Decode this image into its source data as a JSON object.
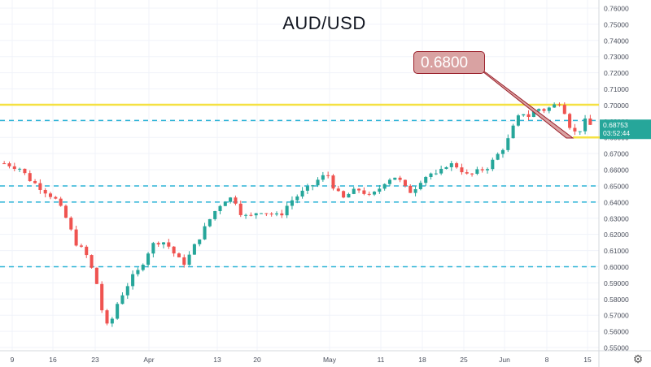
{
  "chart_data": {
    "type": "candlestick",
    "title": "AUD/USD",
    "annotation": "0.6800",
    "ylim": [
      0.548,
      0.762
    ],
    "y_ticks": [
      "0.76000",
      "0.75000",
      "0.74000",
      "0.73000",
      "0.72000",
      "0.71000",
      "0.70000",
      "0.69000",
      "0.68000",
      "0.67000",
      "0.66000",
      "0.65000",
      "0.64000",
      "0.63000",
      "0.62000",
      "0.61000",
      "0.60000",
      "0.59000",
      "0.58000",
      "0.57000",
      "0.56000",
      "0.55000"
    ],
    "x_ticks": [
      "9",
      "16",
      "23",
      "Apr",
      "13",
      "20",
      "May",
      "11",
      "18",
      "25",
      "Jun",
      "8",
      "15"
    ],
    "last_price": "0.68753",
    "countdown": "03:52:44",
    "horizontal_lines": [
      {
        "price": 0.7002,
        "style": "solid",
        "color": "#f5e142"
      },
      {
        "price": 0.6905,
        "style": "dashed",
        "color": "#2bb3d6"
      },
      {
        "price": 0.65,
        "style": "dashed",
        "color": "#2bb3d6"
      },
      {
        "price": 0.64,
        "style": "dashed",
        "color": "#2bb3d6"
      },
      {
        "price": 0.6,
        "style": "dashed",
        "color": "#2bb3d6"
      }
    ],
    "support_line": {
      "price": 0.68,
      "color": "#f5e142"
    },
    "series": {
      "name": "AUD/USD",
      "up_color": "#26a69a",
      "down_color": "#ef5350",
      "close_path": [
        [
          0,
          0.664
        ],
        [
          12,
          0.661
        ],
        [
          20,
          0.654
        ],
        [
          30,
          0.648
        ],
        [
          40,
          0.642
        ],
        [
          48,
          0.631
        ],
        [
          56,
          0.615
        ],
        [
          64,
          0.608
        ],
        [
          72,
          0.592
        ],
        [
          78,
          0.568
        ],
        [
          82,
          0.561
        ],
        [
          88,
          0.576
        ],
        [
          94,
          0.585
        ],
        [
          100,
          0.593
        ],
        [
          106,
          0.598
        ],
        [
          112,
          0.608
        ],
        [
          118,
          0.615
        ],
        [
          124,
          0.616
        ],
        [
          130,
          0.612
        ],
        [
          136,
          0.605
        ],
        [
          142,
          0.602
        ],
        [
          148,
          0.611
        ],
        [
          156,
          0.622
        ],
        [
          164,
          0.633
        ],
        [
          172,
          0.641
        ],
        [
          180,
          0.643
        ],
        [
          186,
          0.633
        ],
        [
          192,
          0.63
        ],
        [
          200,
          0.635
        ],
        [
          208,
          0.633
        ],
        [
          216,
          0.631
        ],
        [
          224,
          0.64
        ],
        [
          232,
          0.645
        ],
        [
          240,
          0.649
        ],
        [
          248,
          0.655
        ],
        [
          254,
          0.657
        ],
        [
          260,
          0.647
        ],
        [
          266,
          0.642
        ],
        [
          272,
          0.646
        ],
        [
          280,
          0.648
        ],
        [
          286,
          0.643
        ],
        [
          292,
          0.646
        ],
        [
          300,
          0.654
        ],
        [
          308,
          0.656
        ],
        [
          314,
          0.649
        ],
        [
          320,
          0.646
        ],
        [
          326,
          0.653
        ],
        [
          334,
          0.658
        ],
        [
          340,
          0.656
        ],
        [
          348,
          0.664
        ],
        [
          356,
          0.662
        ],
        [
          364,
          0.656
        ],
        [
          372,
          0.659
        ],
        [
          380,
          0.662
        ],
        [
          388,
          0.67
        ],
        [
          394,
          0.676
        ],
        [
          400,
          0.687
        ],
        [
          406,
          0.696
        ],
        [
          412,
          0.693
        ],
        [
          418,
          0.698
        ],
        [
          424,
          0.697
        ],
        [
          430,
          0.699
        ],
        [
          436,
          0.702
        ],
        [
          440,
          0.696
        ],
        [
          444,
          0.687
        ],
        [
          448,
          0.683
        ],
        [
          452,
          0.685
        ],
        [
          456,
          0.69
        ],
        [
          460,
          0.6875
        ]
      ]
    }
  }
}
